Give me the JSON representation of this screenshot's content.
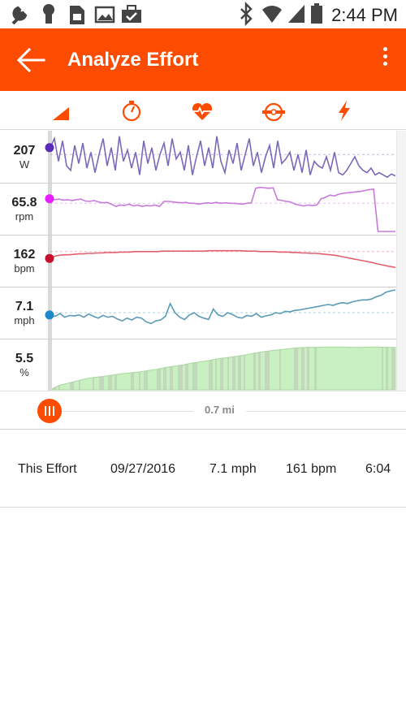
{
  "status_bar": {
    "time": "2:44 PM",
    "icons": [
      "wrench-icon",
      "keyhole-icon",
      "sim-card-icon",
      "image-icon",
      "briefcase-check-icon",
      "bluetooth-icon",
      "wifi-icon",
      "signal-icon",
      "battery-icon"
    ]
  },
  "app_bar": {
    "title": "Analyze Effort",
    "background": "#fc4c02",
    "back_icon": "arrow-left-icon",
    "menu_icon": "more-vert-icon"
  },
  "tabs": [
    {
      "icon": "elevation-icon"
    },
    {
      "icon": "speedometer-icon"
    },
    {
      "icon": "heart-rate-icon"
    },
    {
      "icon": "cadence-icon"
    },
    {
      "icon": "power-bolt-icon"
    }
  ],
  "accent_color": "#fc4c02",
  "chart_data": {
    "type": "line",
    "x_unit": "mi",
    "cursor_position_label": "0.7 mi",
    "series": [
      {
        "metric": "power",
        "value": "207",
        "unit": "W",
        "color": "#7b68b8",
        "dot_color": "#5b2bb5",
        "ref": 0.55,
        "values": [
          0.7,
          0.9,
          0.4,
          0.85,
          0.3,
          0.2,
          0.75,
          0.35,
          0.8,
          0.25,
          0.6,
          0.15,
          0.55,
          0.9,
          0.3,
          0.7,
          0.2,
          0.95,
          0.4,
          0.65,
          0.25,
          0.6,
          0.1,
          0.85,
          0.35,
          0.7,
          0.2,
          0.55,
          0.8,
          0.3,
          0.9,
          0.45,
          0.6,
          0.2,
          0.75,
          0.1,
          0.5,
          0.85,
          0.3,
          0.7,
          0.25,
          0.95,
          0.4,
          0.15,
          0.65,
          0.35,
          0.8,
          0.2,
          0.55,
          0.9,
          0.3,
          0.6,
          0.15,
          0.5,
          0.75,
          0.25,
          0.85,
          0.35,
          0.45,
          0.6,
          0.2,
          0.55,
          0.15,
          0.65,
          0.1,
          0.4,
          0.3,
          0.25,
          0.5,
          0.2,
          0.6,
          0.15,
          0.1,
          0.2,
          0.35,
          0.5,
          0.3,
          0.2,
          0.15,
          0.25,
          0.1,
          0.15,
          0.1,
          0.05,
          0.12,
          0.08
        ]
      },
      {
        "metric": "cadence",
        "value": "65.8",
        "unit": "rpm",
        "color": "#c77ad9",
        "dot_color": "#e81cff",
        "ref": 0.62,
        "values": [
          0.72,
          0.7,
          0.71,
          0.69,
          0.7,
          0.68,
          0.7,
          0.71,
          0.67,
          0.66,
          0.68,
          0.65,
          0.63,
          0.64,
          0.6,
          0.55,
          0.58,
          0.57,
          0.6,
          0.56,
          0.58,
          0.55,
          0.57,
          0.56,
          0.58,
          0.55,
          0.66,
          0.66,
          0.65,
          0.64,
          0.63,
          0.64,
          0.62,
          0.62,
          0.6,
          0.62,
          0.63,
          0.62,
          0.64,
          0.62,
          0.63,
          0.62,
          0.62,
          0.61,
          0.6,
          0.62,
          0.63,
          0.95,
          0.97,
          0.96,
          0.95,
          0.96,
          0.7,
          0.68,
          0.66,
          0.65,
          0.6,
          0.58,
          0.56,
          0.58,
          0.57,
          0.58,
          0.72,
          0.75,
          0.8,
          0.78,
          0.82,
          0.84,
          0.85,
          0.86,
          0.87,
          0.88,
          0.9,
          0.92,
          0.93,
          0.0,
          0.0,
          0.0,
          0.0,
          0.0
        ]
      },
      {
        "metric": "heart_rate",
        "value": "162",
        "unit": "bpm",
        "color": "#e06070",
        "dot_color": "#c8102e",
        "ref": 0.7,
        "values": [
          0.55,
          0.6,
          0.62,
          0.63,
          0.63,
          0.64,
          0.65,
          0.65,
          0.66,
          0.66,
          0.67,
          0.67,
          0.68,
          0.68,
          0.68,
          0.69,
          0.69,
          0.69,
          0.7,
          0.7,
          0.7,
          0.7,
          0.7,
          0.7,
          0.71,
          0.71,
          0.71,
          0.71,
          0.71,
          0.71,
          0.71,
          0.71,
          0.71,
          0.71,
          0.72,
          0.72,
          0.72,
          0.72,
          0.72,
          0.72,
          0.72,
          0.72,
          0.71,
          0.71,
          0.71,
          0.7,
          0.7,
          0.7,
          0.7,
          0.69,
          0.69,
          0.69,
          0.68,
          0.68,
          0.67,
          0.67,
          0.66,
          0.66,
          0.65,
          0.64,
          0.63,
          0.62,
          0.6,
          0.58,
          0.56,
          0.54,
          0.52,
          0.5,
          0.48,
          0.46,
          0.43,
          0.41,
          0.39,
          0.37,
          0.35
        ]
      },
      {
        "metric": "speed",
        "value": "7.1",
        "unit": "mph",
        "color": "#5a9ab5",
        "dot_color": "#1e88c8",
        "ref": 0.5,
        "values": [
          0.45,
          0.42,
          0.48,
          0.4,
          0.44,
          0.43,
          0.45,
          0.4,
          0.47,
          0.42,
          0.38,
          0.44,
          0.4,
          0.42,
          0.36,
          0.32,
          0.38,
          0.34,
          0.4,
          0.38,
          0.3,
          0.26,
          0.32,
          0.34,
          0.42,
          0.7,
          0.5,
          0.4,
          0.35,
          0.45,
          0.5,
          0.42,
          0.38,
          0.35,
          0.58,
          0.45,
          0.42,
          0.5,
          0.46,
          0.4,
          0.38,
          0.44,
          0.42,
          0.48,
          0.4,
          0.43,
          0.45,
          0.5,
          0.48,
          0.53,
          0.52,
          0.55,
          0.56,
          0.58,
          0.6,
          0.62,
          0.64,
          0.66,
          0.68,
          0.66,
          0.7,
          0.72,
          0.7,
          0.74,
          0.76,
          0.78,
          0.78,
          0.8,
          0.85,
          0.88,
          0.95,
          0.98,
          1.0
        ]
      },
      {
        "metric": "grade",
        "value": "5.5",
        "unit": "%",
        "color": "#b8e6b0",
        "fill_light": "#c9f0c0",
        "fill_dark": "#b9c4b5",
        "area": [
          0.0,
          0.1,
          0.15,
          0.2,
          0.25,
          0.28,
          0.3,
          0.33,
          0.36,
          0.38,
          0.4,
          0.43,
          0.46,
          0.5,
          0.53,
          0.56,
          0.6,
          0.63,
          0.66,
          0.7,
          0.72,
          0.75,
          0.78,
          0.82,
          0.85,
          0.88,
          0.9,
          0.92,
          0.94,
          0.95,
          0.95,
          0.96,
          0.96,
          0.96,
          0.95,
          0.95,
          0.96,
          0.96,
          0.95,
          0.95
        ]
      }
    ]
  },
  "slider": {
    "distance_label": "0.7 mi"
  },
  "effort": {
    "label": "This Effort",
    "date": "09/27/2016",
    "speed": "7.1 mph",
    "heart_rate": "161 bpm",
    "time": "6:04"
  }
}
